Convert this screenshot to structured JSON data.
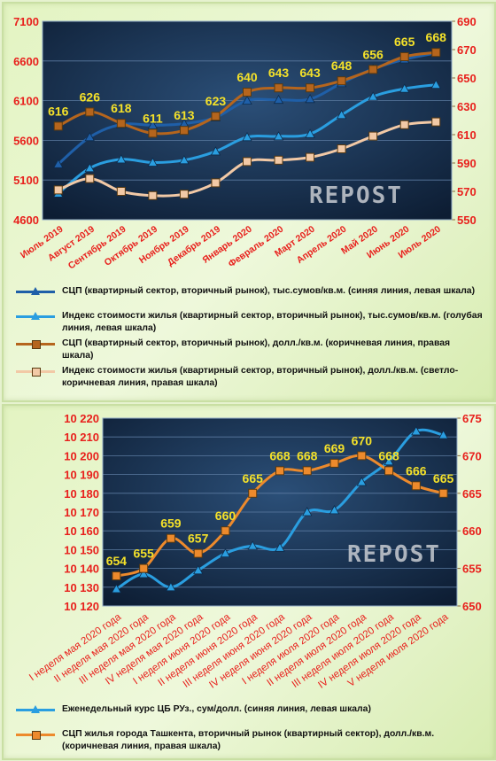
{
  "chart_data": [
    {
      "type": "line",
      "categories": [
        "Июль 2019",
        "Август 2019",
        "Сентябрь 2019",
        "Октябрь 2019",
        "Ноябрь 2019",
        "Декабрь 2019",
        "Январь 2020",
        "Февраль 2020",
        "Март 2020",
        "Апрель 2020",
        "Май 2020",
        "Июнь 2020",
        "Июль 2020"
      ],
      "y_left": {
        "ticks": [
          "4600",
          "5100",
          "5600",
          "6100",
          "6600",
          "7100"
        ],
        "ylim": [
          4600,
          7100
        ]
      },
      "y_right": {
        "ticks": [
          "550",
          "570",
          "590",
          "610",
          "630",
          "650",
          "670",
          "690"
        ],
        "ylim": [
          550,
          690
        ]
      },
      "watermark": "REPOST",
      "series": [
        {
          "name": "СЦП (квартирный сектор, вторичный рынок), тыс.сумов/кв.м. (синяя линия,  левая шкала)",
          "axis": "left",
          "color": "#1f5fa8",
          "marker": "triangle",
          "values": [
            5300,
            5640,
            5800,
            5790,
            5810,
            5890,
            6100,
            6110,
            6120,
            6320,
            6500,
            6620,
            6700
          ]
        },
        {
          "name": "Индекс стоимости жилья (квартирный сектор, вторичный рынок),  тыс.сумов/кв.м. (голубая линия,  левая шкала)",
          "axis": "left",
          "color": "#2a9ee0",
          "marker": "triangle",
          "values": [
            4930,
            5250,
            5360,
            5320,
            5350,
            5460,
            5640,
            5650,
            5680,
            5920,
            6150,
            6250,
            6300
          ]
        },
        {
          "name": "СЦП (квартирный сектор, вторичный рынок),  долл./кв.м. (коричневая линия,  правая шкала)",
          "axis": "right",
          "color": "#b5651d",
          "marker": "square",
          "values": [
            616,
            626,
            618,
            611,
            613,
            623,
            640,
            643,
            643,
            648,
            656,
            665,
            668
          ],
          "labels": [
            "616",
            "626",
            "618",
            "611",
            "613",
            "623",
            "640",
            "643",
            "643",
            "648",
            "656",
            "665",
            "668"
          ]
        },
        {
          "name": "Индекс стоимости жилья (квартирный сектор, вторичный рынок),  долл./кв.м. (светло-коричневая линия,  правая шкала)",
          "axis": "right",
          "color": "#f2c9a6",
          "marker": "square",
          "values": [
            571,
            579,
            570,
            567,
            568,
            576,
            591,
            592,
            594,
            600,
            609,
            617,
            619
          ]
        }
      ]
    },
    {
      "type": "line",
      "categories": [
        "I неделя мая 2020 года",
        "II неделя мая 2020 года",
        "III неделя мая 2020 года",
        "IV неделя мая 2020 года",
        "I неделя июня 2020 года",
        "II неделя июня 2020 года",
        "III неделя июня 2020 года",
        "IV неделя июня 2020 года",
        "I неделя июля 2020 года",
        "II неделя июля 2020 года",
        "III неделя июля 2020 года",
        "IV неделя июля 2020 года",
        "V неделя июля 2020 года"
      ],
      "y_left": {
        "ticks": [
          "10 120",
          "10 130",
          "10 140",
          "10 150",
          "10 160",
          "10 170",
          "10 180",
          "10 190",
          "10 200",
          "10 210",
          "10 220"
        ],
        "ylim": [
          10120,
          10220
        ]
      },
      "y_right": {
        "ticks": [
          "650",
          "655",
          "660",
          "665",
          "670",
          "675"
        ],
        "ylim": [
          650,
          675
        ]
      },
      "watermark": "REPOST",
      "series": [
        {
          "name": "Еженедельный курс ЦБ РУз., сум/долл. (синяя линия, левая шкала)",
          "axis": "left",
          "color": "#2a9ee0",
          "marker": "triangle",
          "values": [
            10129,
            10137,
            10130,
            10139,
            10148,
            10152,
            10151,
            10170,
            10171,
            10186,
            10197,
            10213,
            10211
          ]
        },
        {
          "name": "СЦП жилья города Ташкента, вторичный рынок (квартирный сектор), долл./кв.м. (коричневая линия, правая шкала)",
          "axis": "right",
          "color": "#ed8a2c",
          "marker": "square",
          "values": [
            654,
            655,
            659,
            657,
            660,
            665,
            668,
            668,
            669,
            670,
            668,
            666,
            665
          ],
          "labels": [
            "654",
            "655",
            "659",
            "657",
            "660",
            "665",
            "668",
            "668",
            "669",
            "670",
            "668",
            "666",
            "665"
          ]
        }
      ]
    }
  ]
}
